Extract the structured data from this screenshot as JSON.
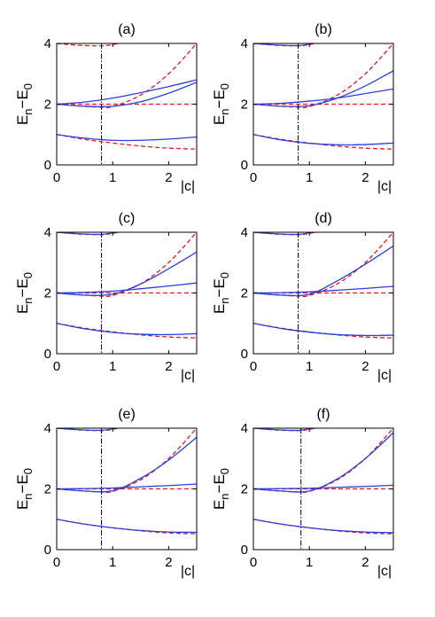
{
  "chart_data": [
    {
      "type": "line",
      "panel_label": "(a)",
      "xlabel": "|c|",
      "ylabel": "E_n−E_0",
      "xlim": [
        0,
        2.5
      ],
      "ylim": [
        0,
        4
      ],
      "xticks": [
        0,
        1,
        2
      ],
      "yticks": [
        0,
        2,
        4
      ],
      "vline_x": 0.8,
      "series": [
        {
          "style": "solid",
          "x": [
            0,
            0.5,
            1.0,
            1.5,
            2.0,
            2.5
          ],
          "y": [
            1.0,
            0.88,
            0.81,
            0.81,
            0.85,
            0.92
          ]
        },
        {
          "style": "solid",
          "x": [
            0,
            0.5,
            1.0,
            1.5,
            2.0,
            2.5
          ],
          "y": [
            2.0,
            2.07,
            2.2,
            2.38,
            2.58,
            2.8
          ]
        },
        {
          "style": "solid",
          "x": [
            0,
            0.5,
            1.0,
            1.5,
            2.0,
            2.5
          ],
          "y": [
            2.0,
            1.93,
            1.93,
            2.08,
            2.36,
            2.72
          ]
        },
        {
          "style": "dashed",
          "x": [
            0,
            0.5,
            1.0,
            1.5,
            2.0,
            2.5
          ],
          "y": [
            1.0,
            0.84,
            0.72,
            0.62,
            0.55,
            0.52
          ]
        },
        {
          "style": "dashed",
          "x": [
            0,
            0.5,
            1.0,
            1.5,
            2.0,
            2.5
          ],
          "y": [
            2.0,
            2.0,
            2.0,
            2.0,
            2.0,
            2.0
          ]
        },
        {
          "style": "dashed",
          "x": [
            0,
            0.5,
            0.8,
            1.0,
            1.5,
            2.0,
            2.5
          ],
          "y": [
            2.0,
            1.93,
            1.9,
            1.92,
            2.3,
            3.0,
            4.0
          ]
        },
        {
          "style": "dashed",
          "x": [
            0,
            0.4,
            0.8,
            1.0,
            1.2
          ],
          "y": [
            4.0,
            3.94,
            3.92,
            3.96,
            4.05
          ]
        }
      ]
    },
    {
      "type": "line",
      "panel_label": "(b)",
      "xlabel": "|c|",
      "ylabel": "E_n−E_0",
      "xlim": [
        0,
        2.5
      ],
      "ylim": [
        0,
        4
      ],
      "xticks": [
        0,
        1,
        2
      ],
      "yticks": [
        0,
        2,
        4
      ],
      "vline_x": 0.8,
      "series": [
        {
          "style": "solid",
          "x": [
            0,
            0.5,
            1.0,
            1.5,
            2.0,
            2.5
          ],
          "y": [
            1.0,
            0.82,
            0.71,
            0.66,
            0.67,
            0.72
          ]
        },
        {
          "style": "solid",
          "x": [
            0,
            0.5,
            1.0,
            1.5,
            2.0,
            2.5
          ],
          "y": [
            2.0,
            2.03,
            2.1,
            2.2,
            2.35,
            2.5
          ]
        },
        {
          "style": "solid",
          "x": [
            0,
            0.5,
            1.0,
            1.5,
            2.0,
            2.5
          ],
          "y": [
            2.0,
            1.93,
            1.95,
            2.2,
            2.6,
            3.1
          ]
        },
        {
          "style": "solid",
          "x": [
            0,
            0.4,
            0.8,
            1.05
          ],
          "y": [
            4.0,
            3.95,
            3.93,
            4.0
          ]
        },
        {
          "style": "dashed",
          "x": [
            0,
            0.5,
            1.0,
            1.5,
            2.0,
            2.5
          ],
          "y": [
            1.0,
            0.84,
            0.72,
            0.62,
            0.55,
            0.52
          ]
        },
        {
          "style": "dashed",
          "x": [
            0,
            0.5,
            1.0,
            1.5,
            2.0,
            2.5
          ],
          "y": [
            2.0,
            2.0,
            2.0,
            2.0,
            2.0,
            2.0
          ]
        },
        {
          "style": "dashed",
          "x": [
            0,
            0.5,
            0.8,
            1.0,
            1.5,
            2.0,
            2.5
          ],
          "y": [
            2.0,
            1.93,
            1.9,
            1.92,
            2.3,
            3.0,
            4.0
          ]
        },
        {
          "style": "dashed",
          "x": [
            0,
            0.4,
            0.8,
            1.0,
            1.2
          ],
          "y": [
            4.0,
            3.94,
            3.92,
            3.96,
            4.05
          ]
        }
      ]
    },
    {
      "type": "line",
      "panel_label": "(c)",
      "xlabel": "|c|",
      "ylabel": "E_n−E_0",
      "xlim": [
        0,
        2.5
      ],
      "ylim": [
        0,
        4
      ],
      "xticks": [
        0,
        1,
        2
      ],
      "yticks": [
        0,
        2,
        4
      ],
      "vline_x": 0.8,
      "series": [
        {
          "style": "solid",
          "x": [
            0,
            0.5,
            1.0,
            1.5,
            2.0,
            2.5
          ],
          "y": [
            1.0,
            0.82,
            0.7,
            0.64,
            0.63,
            0.66
          ]
        },
        {
          "style": "solid",
          "x": [
            0,
            0.5,
            1.0,
            1.5,
            2.0,
            2.5
          ],
          "y": [
            2.0,
            2.02,
            2.06,
            2.14,
            2.23,
            2.33
          ]
        },
        {
          "style": "solid",
          "x": [
            0,
            0.5,
            1.0,
            1.5,
            2.0,
            2.5
          ],
          "y": [
            2.0,
            1.93,
            1.96,
            2.3,
            2.8,
            3.35
          ]
        },
        {
          "style": "solid",
          "x": [
            0,
            0.4,
            0.8,
            1.05
          ],
          "y": [
            4.0,
            3.95,
            3.93,
            4.0
          ]
        },
        {
          "style": "dashed",
          "x": [
            0,
            0.5,
            1.0,
            1.5,
            2.0,
            2.5
          ],
          "y": [
            1.0,
            0.84,
            0.72,
            0.62,
            0.55,
            0.52
          ]
        },
        {
          "style": "dashed",
          "x": [
            0,
            0.5,
            1.0,
            1.5,
            2.0,
            2.5
          ],
          "y": [
            2.0,
            2.0,
            2.0,
            2.0,
            2.0,
            2.0
          ]
        },
        {
          "style": "dashed",
          "x": [
            0,
            0.5,
            0.8,
            1.0,
            1.5,
            2.0,
            2.5
          ],
          "y": [
            2.0,
            1.93,
            1.9,
            1.92,
            2.3,
            3.0,
            4.0
          ]
        },
        {
          "style": "dashed",
          "x": [
            0,
            0.4,
            0.8,
            1.0,
            1.2
          ],
          "y": [
            4.0,
            3.94,
            3.92,
            3.96,
            4.05
          ]
        }
      ]
    },
    {
      "type": "line",
      "panel_label": "(d)",
      "xlabel": "|c|",
      "ylabel": "E_n−E_0",
      "xlim": [
        0,
        2.5
      ],
      "ylim": [
        0,
        4
      ],
      "xticks": [
        0,
        1,
        2
      ],
      "yticks": [
        0,
        2,
        4
      ],
      "vline_x": 0.8,
      "series": [
        {
          "style": "solid",
          "x": [
            0,
            0.5,
            1.0,
            1.5,
            2.0,
            2.5
          ],
          "y": [
            1.0,
            0.83,
            0.71,
            0.63,
            0.6,
            0.61
          ]
        },
        {
          "style": "solid",
          "x": [
            0,
            0.5,
            1.0,
            1.5,
            2.0,
            2.5
          ],
          "y": [
            2.0,
            2.01,
            2.04,
            2.09,
            2.15,
            2.22
          ]
        },
        {
          "style": "solid",
          "x": [
            0,
            0.5,
            1.0,
            1.5,
            2.0,
            2.5
          ],
          "y": [
            2.0,
            1.93,
            1.96,
            2.4,
            2.95,
            3.55
          ]
        },
        {
          "style": "solid",
          "x": [
            0,
            0.4,
            0.8,
            1.05
          ],
          "y": [
            4.0,
            3.95,
            3.93,
            4.0
          ]
        },
        {
          "style": "dashed",
          "x": [
            0,
            0.5,
            1.0,
            1.5,
            2.0,
            2.5
          ],
          "y": [
            1.0,
            0.84,
            0.72,
            0.62,
            0.55,
            0.52
          ]
        },
        {
          "style": "dashed",
          "x": [
            0,
            0.5,
            1.0,
            1.5,
            2.0,
            2.5
          ],
          "y": [
            2.0,
            2.0,
            2.0,
            2.0,
            2.0,
            2.0
          ]
        },
        {
          "style": "dashed",
          "x": [
            0,
            0.5,
            0.8,
            1.0,
            1.5,
            2.0,
            2.5
          ],
          "y": [
            2.0,
            1.93,
            1.9,
            1.92,
            2.3,
            3.0,
            4.0
          ]
        },
        {
          "style": "dashed",
          "x": [
            0,
            0.4,
            0.8,
            1.0,
            1.2
          ],
          "y": [
            4.0,
            3.94,
            3.92,
            3.96,
            4.05
          ]
        }
      ]
    },
    {
      "type": "line",
      "panel_label": "(e)",
      "xlabel": "|c|",
      "ylabel": "E_n−E_0",
      "xlim": [
        0,
        2.5
      ],
      "ylim": [
        0,
        4
      ],
      "xticks": [
        0,
        1,
        2
      ],
      "yticks": [
        0,
        2,
        4
      ],
      "vline_x": 0.8,
      "series": [
        {
          "style": "solid",
          "x": [
            0,
            0.5,
            1.0,
            1.5,
            2.0,
            2.5
          ],
          "y": [
            1.0,
            0.84,
            0.72,
            0.63,
            0.58,
            0.57
          ]
        },
        {
          "style": "solid",
          "x": [
            0,
            0.5,
            1.0,
            1.5,
            2.0,
            2.5
          ],
          "y": [
            2.0,
            2.01,
            2.03,
            2.07,
            2.11,
            2.16
          ]
        },
        {
          "style": "solid",
          "x": [
            0,
            0.5,
            1.0,
            1.5,
            2.0,
            2.5
          ],
          "y": [
            2.0,
            1.93,
            1.94,
            2.35,
            2.95,
            3.7
          ]
        },
        {
          "style": "solid",
          "x": [
            0,
            0.4,
            0.8,
            1.05
          ],
          "y": [
            4.0,
            3.95,
            3.93,
            4.0
          ]
        },
        {
          "style": "dashed",
          "x": [
            0,
            0.5,
            1.0,
            1.5,
            2.0,
            2.5
          ],
          "y": [
            1.0,
            0.84,
            0.72,
            0.62,
            0.55,
            0.52
          ]
        },
        {
          "style": "dashed",
          "x": [
            0,
            0.5,
            1.0,
            1.5,
            2.0,
            2.5
          ],
          "y": [
            2.0,
            2.0,
            2.0,
            2.0,
            2.0,
            2.0
          ]
        },
        {
          "style": "dashed",
          "x": [
            0,
            0.5,
            0.8,
            1.0,
            1.5,
            2.0,
            2.5
          ],
          "y": [
            2.0,
            1.93,
            1.9,
            1.92,
            2.3,
            3.0,
            4.0
          ]
        },
        {
          "style": "dashed",
          "x": [
            0,
            0.4,
            0.8,
            1.0,
            1.2
          ],
          "y": [
            4.0,
            3.94,
            3.92,
            3.96,
            4.05
          ]
        }
      ]
    },
    {
      "type": "line",
      "panel_label": "(f)",
      "xlabel": "|c|",
      "ylabel": "E_n−E_0",
      "xlim": [
        0,
        2.5
      ],
      "ylim": [
        0,
        4
      ],
      "xticks": [
        0,
        1,
        2
      ],
      "yticks": [
        0,
        2,
        4
      ],
      "vline_x": 0.85,
      "series": [
        {
          "style": "solid",
          "x": [
            0,
            0.5,
            1.0,
            1.5,
            2.0,
            2.5
          ],
          "y": [
            1.0,
            0.84,
            0.72,
            0.63,
            0.58,
            0.56
          ]
        },
        {
          "style": "solid",
          "x": [
            0,
            0.5,
            1.0,
            1.5,
            2.0,
            2.5
          ],
          "y": [
            2.0,
            2.01,
            2.02,
            2.05,
            2.08,
            2.12
          ]
        },
        {
          "style": "solid",
          "x": [
            0,
            0.5,
            1.0,
            1.5,
            2.0,
            2.5
          ],
          "y": [
            2.0,
            1.93,
            1.93,
            2.33,
            3.0,
            3.85
          ]
        },
        {
          "style": "solid",
          "x": [
            0,
            0.4,
            0.8,
            1.05
          ],
          "y": [
            4.0,
            3.95,
            3.93,
            4.0
          ]
        },
        {
          "style": "dashed",
          "x": [
            0,
            0.5,
            1.0,
            1.5,
            2.0,
            2.5
          ],
          "y": [
            1.0,
            0.84,
            0.72,
            0.62,
            0.55,
            0.52
          ]
        },
        {
          "style": "dashed",
          "x": [
            0,
            0.5,
            1.0,
            1.5,
            2.0,
            2.5
          ],
          "y": [
            2.0,
            2.0,
            2.0,
            2.0,
            2.0,
            2.0
          ]
        },
        {
          "style": "dashed",
          "x": [
            0,
            0.5,
            0.8,
            1.0,
            1.5,
            2.0,
            2.5
          ],
          "y": [
            2.0,
            1.93,
            1.9,
            1.92,
            2.3,
            3.0,
            4.0
          ]
        },
        {
          "style": "dashed",
          "x": [
            0,
            0.4,
            0.8,
            1.0,
            1.2
          ],
          "y": [
            4.0,
            3.94,
            3.92,
            3.96,
            4.05
          ]
        }
      ]
    }
  ],
  "colors": {
    "solid_line": "#2a3fe0",
    "dashed_line": "#e8141e",
    "vline": "#000000",
    "axes": "#000000"
  }
}
